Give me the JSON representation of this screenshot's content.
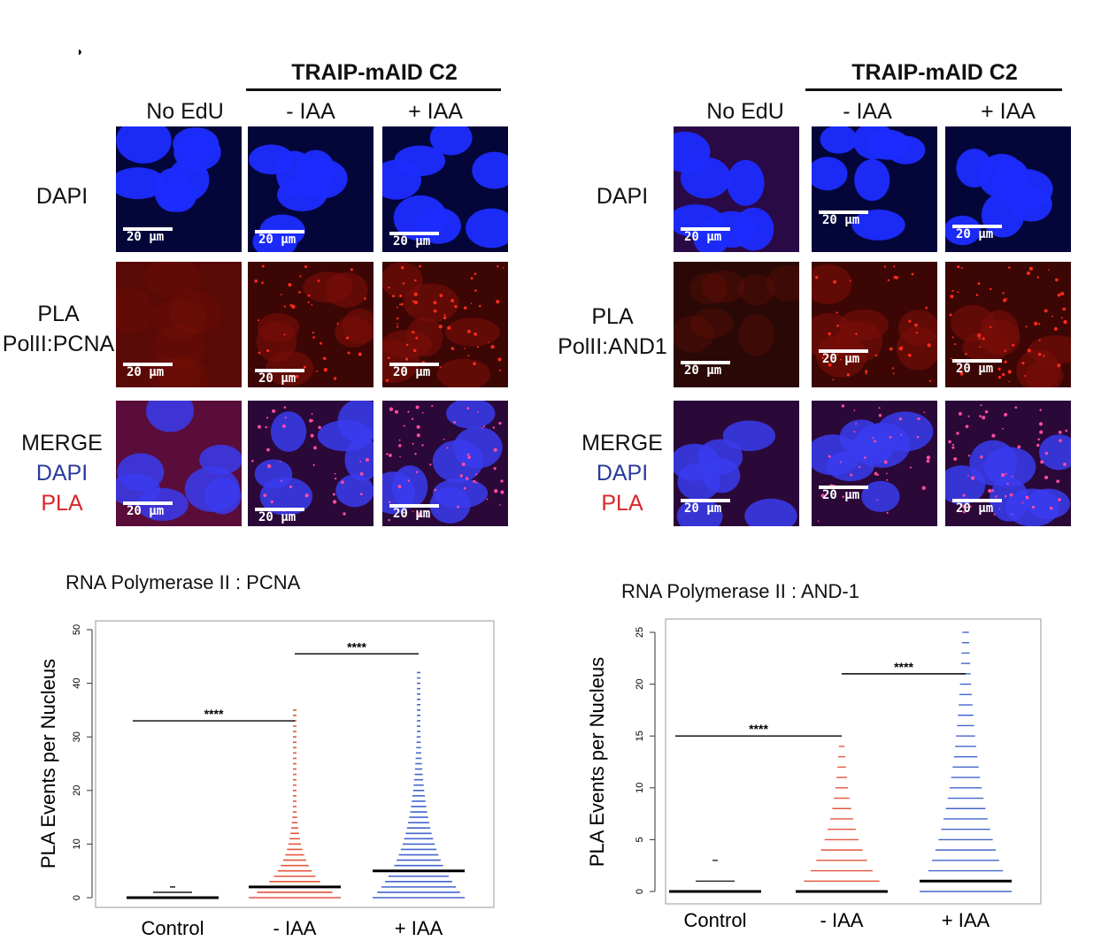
{
  "figure_marker": "◗",
  "left": {
    "group_title": "TRAIP-mAID C2",
    "col_labels": [
      "No EdU",
      "- IAA",
      "+ IAA"
    ],
    "rows": [
      {
        "lines": [
          "DAPI"
        ]
      },
      {
        "lines": [
          "PLA",
          "PolII:PCNA"
        ]
      },
      {
        "lines": [
          "MERGE",
          "DAPI",
          "PLA"
        ]
      }
    ]
  },
  "right": {
    "group_title": "TRAIP-mAID C2",
    "col_labels": [
      "No EdU",
      "- IAA",
      "+ IAA"
    ],
    "rows": [
      {
        "lines": [
          "DAPI"
        ]
      },
      {
        "lines": [
          "PLA",
          "PolII:AND1"
        ]
      },
      {
        "lines": [
          "MERGE",
          "DAPI",
          "PLA"
        ]
      }
    ]
  },
  "scale_label": "20 μm",
  "colors": {
    "dapi": "#1c2cff",
    "pla": "#ff2a1a",
    "control": "#111111",
    "minus_iaa": "#e0442a",
    "plus_iaa": "#2f55c8"
  },
  "chart_data": [
    {
      "type": "scatter",
      "title": "RNA Polymerase II : PCNA",
      "ylabel": "PLA Events per Nucleus",
      "categories": [
        "Control",
        "-  IAA",
        "+  IAA"
      ],
      "ylim": [
        0,
        50
      ],
      "yticks": [
        0,
        10,
        20,
        30,
        40,
        50
      ],
      "medians": [
        0,
        2,
        5
      ],
      "max_values": [
        2,
        35,
        42
      ],
      "significance": [
        {
          "from": "Control",
          "to": "-  IAA",
          "label": "****",
          "y": 33
        },
        {
          "from": "-  IAA",
          "to": "+  IAA",
          "label": "****",
          "y": 45.5
        }
      ]
    },
    {
      "type": "scatter",
      "title": "RNA Polymerase II : AND-1",
      "ylabel": "PLA Events per Nucleus",
      "categories": [
        "Control",
        "-  IAA",
        "+  IAA"
      ],
      "ylim": [
        0,
        25
      ],
      "yticks": [
        0,
        5,
        10,
        15,
        20,
        25
      ],
      "medians": [
        0,
        0,
        1
      ],
      "max_values": [
        3,
        14,
        25
      ],
      "significance": [
        {
          "from": "Control",
          "to": "-  IAA",
          "label": "****",
          "y": 15
        },
        {
          "from": "-  IAA",
          "to": "+  IAA",
          "label": "****",
          "y": 21
        }
      ]
    }
  ]
}
